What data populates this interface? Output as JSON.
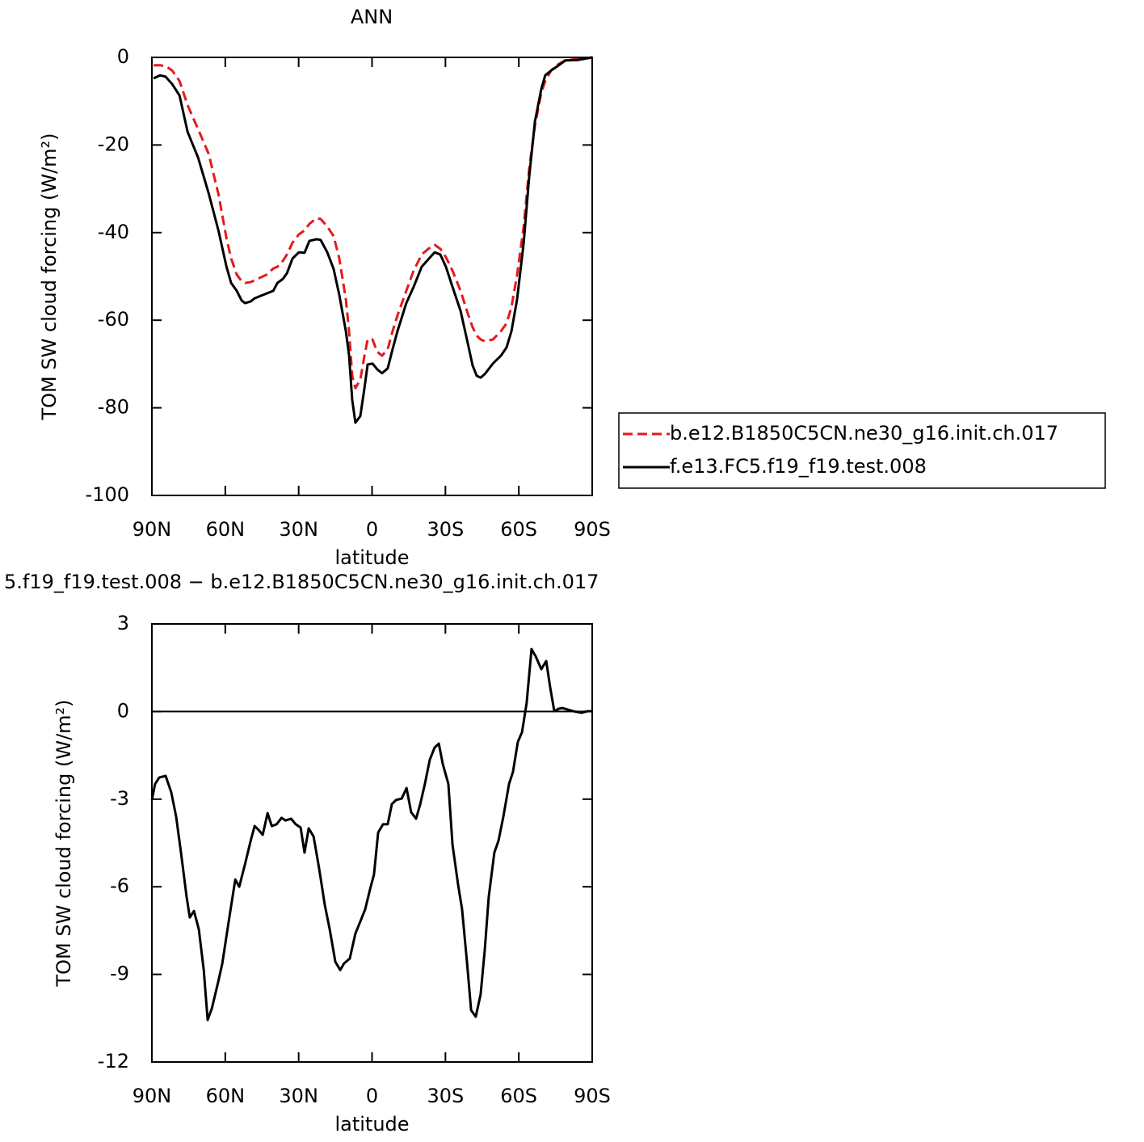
{
  "chart_data": [
    {
      "type": "line",
      "title": "ANN",
      "xlabel": "latitude",
      "ylabel": "TOM SW cloud forcing (W/m²)",
      "x": [
        89.3,
        86.7,
        84.4,
        81.7,
        78.7,
        75.4,
        71.1,
        66.8,
        62.8,
        59.5,
        57.6,
        55.3,
        53.3,
        51.9,
        49.6,
        48,
        43.1,
        40.4,
        38.7,
        36.5,
        34.8,
        32.5,
        29.9,
        27.6,
        25.6,
        22.6,
        21,
        18.3,
        15.7,
        13.4,
        10.7,
        9.4,
        8.1,
        6.8,
        4.8,
        3.1,
        1.8,
        -0.2,
        -2.1,
        -4.1,
        -6.4,
        -8.4,
        -10.4,
        -14,
        -17,
        -20.3,
        -23,
        -25.6,
        -27.9,
        -30.2,
        -32.9,
        -36.2,
        -38.8,
        -41.1,
        -42.8,
        -44.4,
        -46.1,
        -49.4,
        -52.7,
        -55,
        -57,
        -59.3,
        -62,
        -64.2,
        -66.6,
        -69.2,
        -70.8,
        -73.2,
        -75.8,
        -79.1,
        -84,
        -90
      ],
      "series": [
        {
          "name": "b.e12.B1850C5CN.ne30_g16.init.ch.017",
          "color": "#e41a1c",
          "line_style": "dashed",
          "values": [
            -1.8,
            -1.8,
            -2,
            -3,
            -5.4,
            -10.9,
            -16.4,
            -22,
            -31.2,
            -41.3,
            -45.9,
            -49.6,
            -51.1,
            -51.5,
            -51.3,
            -50.9,
            -49.6,
            -48.2,
            -47.8,
            -46.5,
            -45,
            -42.3,
            -40.4,
            -39.5,
            -38,
            -36.7,
            -36.9,
            -38.6,
            -40.8,
            -45.9,
            -55.2,
            -62.5,
            -72.7,
            -75.5,
            -73.6,
            -68.1,
            -64.4,
            -64.4,
            -67.2,
            -68.1,
            -66.6,
            -62.5,
            -58.9,
            -53.3,
            -48.7,
            -45,
            -43.7,
            -42.8,
            -43.7,
            -45.6,
            -48.7,
            -53.3,
            -57.9,
            -61.6,
            -63.5,
            -64.4,
            -64.8,
            -64.4,
            -62.5,
            -60.7,
            -57,
            -49.6,
            -38.6,
            -25.6,
            -15.5,
            -8.1,
            -5.4,
            -3,
            -1.7,
            -0.6,
            -0.4,
            0
          ]
        },
        {
          "name": "f.e13.FC5.f19_f19.test.008",
          "color": "#000000",
          "line_style": "solid",
          "values": [
            -4.8,
            -4.1,
            -4.4,
            -6.1,
            -8.7,
            -17,
            -22.9,
            -31,
            -39.5,
            -47.8,
            -51.5,
            -53.3,
            -55.5,
            -56.1,
            -55.7,
            -55,
            -53.9,
            -53.3,
            -51.5,
            -50.6,
            -49.3,
            -45.9,
            -44.5,
            -44.6,
            -41.9,
            -41.5,
            -41.7,
            -44.5,
            -48.3,
            -54.2,
            -62.5,
            -68,
            -78.2,
            -83.4,
            -81.9,
            -75.5,
            -70.1,
            -69.9,
            -71.2,
            -72.1,
            -71,
            -66.6,
            -62.5,
            -56.1,
            -52.4,
            -47.8,
            -46.1,
            -44.5,
            -45,
            -47.8,
            -52.4,
            -57.9,
            -64.4,
            -70.3,
            -72.7,
            -73.1,
            -72.3,
            -69.9,
            -68.1,
            -66.2,
            -62.5,
            -55.2,
            -42.3,
            -27.5,
            -14.6,
            -7.2,
            -4.1,
            -3,
            -2,
            -0.7,
            -0.6,
            0
          ]
        }
      ],
      "xlim": [
        90,
        -90
      ],
      "xticks": [
        {
          "value": 90,
          "label": "90N"
        },
        {
          "value": 60,
          "label": "60N"
        },
        {
          "value": 30,
          "label": "30N"
        },
        0,
        {
          "value": -30,
          "label": "30S"
        },
        {
          "value": -60,
          "label": "60S"
        },
        {
          "value": -90,
          "label": "90S"
        }
      ],
      "ylim": [
        -100,
        0
      ],
      "yticks": [
        -100,
        -80,
        -60,
        -40,
        -20,
        0
      ],
      "zero_line": true,
      "legend": "right"
    },
    {
      "type": "line",
      "title": "5.f19_f19.test.008 − b.e12.B1850C5CN.ne30_g16.init.ch.017",
      "xlabel": "latitude",
      "ylabel": "TOM SW cloud forcing (W/m²)",
      "x": [
        90,
        88.7,
        87,
        84.4,
        82.1,
        80.1,
        78.1,
        75.8,
        74.5,
        72.8,
        70.8,
        68.8,
        67.2,
        65.5,
        62.9,
        61.2,
        58.6,
        55.9,
        54.3,
        52,
        49.6,
        48,
        46.3,
        44.7,
        42.7,
        41,
        39,
        37,
        35.4,
        33.1,
        31.2,
        29.2,
        27.6,
        25.9,
        23.9,
        21.6,
        19.3,
        17.3,
        15,
        13,
        11.4,
        9.1,
        6.8,
        4.8,
        2.8,
        0.8,
        -0.8,
        -2.5,
        -4.5,
        -6.4,
        -8.1,
        -9.8,
        -12.1,
        -14.1,
        -16,
        -18,
        -19.7,
        -21.6,
        -23.6,
        -25.6,
        -27.3,
        -28.9,
        -31.2,
        -32.9,
        -35.2,
        -36.8,
        -38.8,
        -40.5,
        -42.4,
        -44.4,
        -46.1,
        -47.7,
        -50,
        -51.7,
        -53.7,
        -56,
        -57.6,
        -59.6,
        -61.3,
        -63.2,
        -65.2,
        -66.9,
        -69.2,
        -71.2,
        -72.8,
        -74.5,
        -76.1,
        -77.8,
        -79.8,
        -82.4,
        -85.7,
        -88,
        -90
      ],
      "series": [
        {
          "color": "#000000",
          "line_style": "solid",
          "values": [
            -3.03,
            -2.48,
            -2.26,
            -2.2,
            -2.76,
            -3.59,
            -4.83,
            -6.35,
            -7.05,
            -6.83,
            -7.46,
            -8.85,
            -10.56,
            -10.17,
            -9.26,
            -8.62,
            -7.19,
            -5.75,
            -6,
            -5.25,
            -4.42,
            -3.92,
            -4.06,
            -4.22,
            -3.48,
            -3.92,
            -3.86,
            -3.64,
            -3.73,
            -3.67,
            -3.86,
            -3.97,
            -4.83,
            -4,
            -4.28,
            -5.39,
            -6.63,
            -7.46,
            -8.57,
            -8.85,
            -8.62,
            -8.46,
            -7.6,
            -7.19,
            -6.77,
            -6.08,
            -5.58,
            -4.14,
            -3.86,
            -3.86,
            -3.17,
            -3.03,
            -2.98,
            -2.62,
            -3.45,
            -3.67,
            -3.17,
            -2.48,
            -1.65,
            -1.23,
            -1.1,
            -1.79,
            -2.48,
            -4.56,
            -5.94,
            -6.77,
            -8.57,
            -10.23,
            -10.45,
            -9.68,
            -8.15,
            -6.35,
            -4.83,
            -4.42,
            -3.59,
            -2.48,
            -2.07,
            -1.04,
            -0.71,
            0.29,
            2.14,
            1.89,
            1.45,
            1.73,
            0.84,
            0.01,
            0.09,
            0.12,
            0.07,
            0.01,
            -0.04,
            0.01,
            0.01
          ]
        }
      ],
      "xlim": [
        90,
        -90
      ],
      "xticks": [
        {
          "value": 90,
          "label": "90N"
        },
        {
          "value": 60,
          "label": "60N"
        },
        {
          "value": 30,
          "label": "30N"
        },
        0,
        {
          "value": -30,
          "label": "30S"
        },
        {
          "value": -60,
          "label": "60S"
        },
        {
          "value": -90,
          "label": "90S"
        }
      ],
      "ylim": [
        -12,
        3
      ],
      "yticks": [
        -12,
        -9,
        -6,
        -3,
        0,
        3
      ],
      "zero_line": true
    }
  ]
}
